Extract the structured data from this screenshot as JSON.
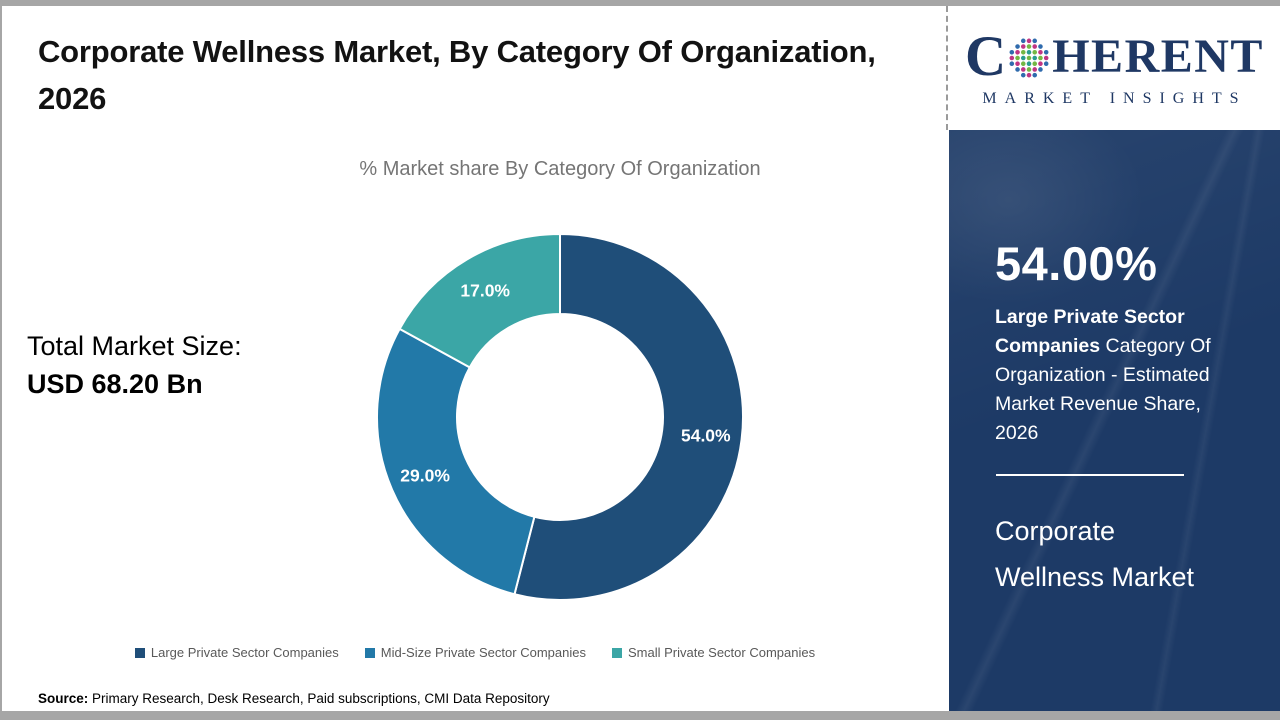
{
  "header": {
    "title": "Corporate Wellness Market, By Category Of Organization, 2026"
  },
  "total_market": {
    "label": "Total Market Size:",
    "value": "USD 68.20 Bn"
  },
  "chart_data": {
    "type": "pie",
    "subtype": "donut",
    "title": "% Market share By Category Of Organization",
    "categories": [
      "Large Private Sector Companies",
      "Mid-Size Private Sector Companies",
      "Small Private Sector Companies"
    ],
    "values": [
      54.0,
      29.0,
      17.0
    ],
    "data_labels": [
      "54.0%",
      "29.0%",
      "17.0%"
    ],
    "colors": [
      "#1F4E79",
      "#2279A8",
      "#3BA6A6"
    ],
    "legend_position": "bottom",
    "start_angle_deg": 0,
    "direction": "clockwise",
    "inner_radius_ratio": 0.56
  },
  "source": {
    "label": "Source:",
    "text": " Primary Research, Desk Research, Paid subscriptions, CMI Data Repository"
  },
  "logo": {
    "name_left": "C",
    "name_right": "HERENT",
    "tagline": "MARKET INSIGHTS",
    "navy": "#1f3864"
  },
  "sidebar": {
    "bg_color": "#1d3a66",
    "highlight_value": "54.00%",
    "desc_bold": "Large Private Sector Companies",
    "desc_rest": " Category Of Organization - Estimated Market Revenue Share, 2026",
    "market_name": "Corporate Wellness Market"
  },
  "colors": {
    "title_text": "#121212",
    "subtitle_text": "#757575",
    "legend_text": "#595959",
    "frame_gray": "#a6a6a6"
  }
}
